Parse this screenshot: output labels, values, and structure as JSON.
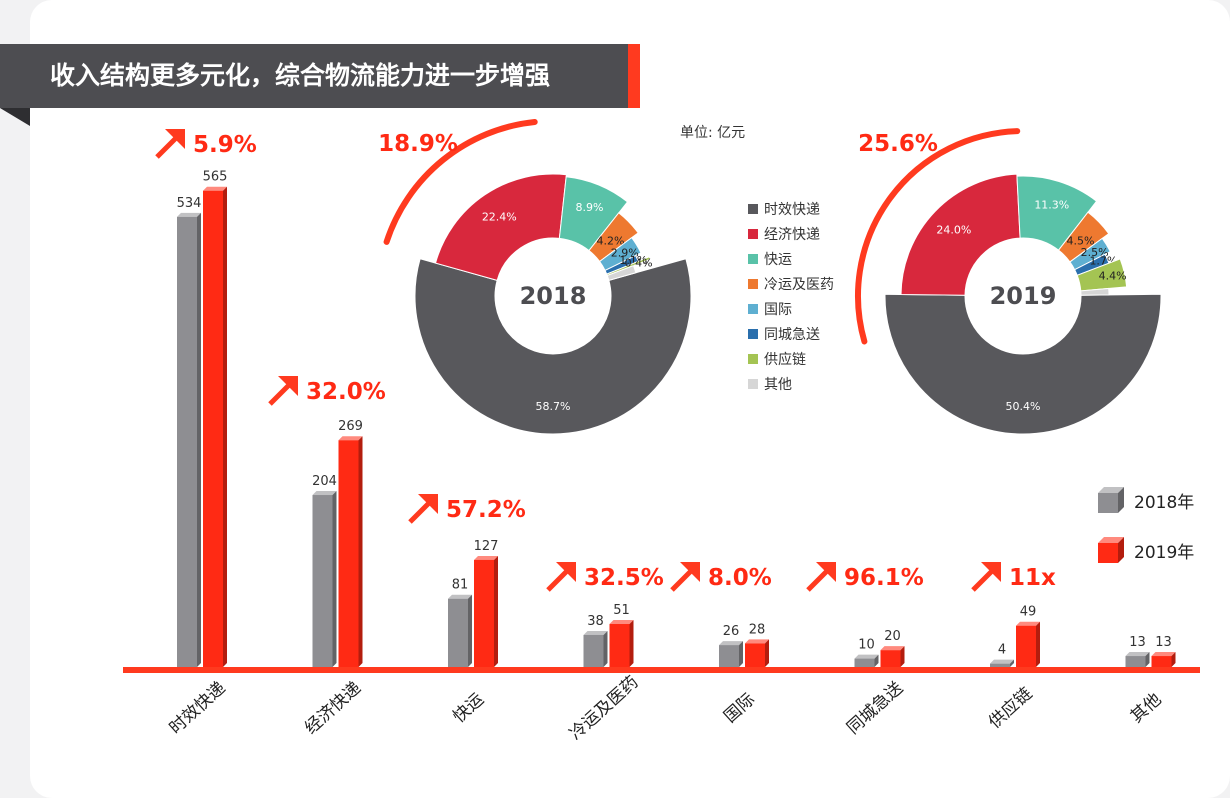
{
  "header": {
    "title": "收入结构更多元化，综合物流能力进一步增强"
  },
  "unit_label": "单位: 亿元",
  "colors": {
    "y2018": "#8e8e92",
    "y2019": "#ff2a14",
    "accent": "#ff3a1f",
    "dark": "#4d4d51"
  },
  "legend": [
    {
      "label": "时效快递",
      "color": "#58585c"
    },
    {
      "label": "经济快递",
      "color": "#d8283d"
    },
    {
      "label": "快运",
      "color": "#59c2a8"
    },
    {
      "label": "冷运及医药",
      "color": "#ee7930"
    },
    {
      "label": "国际",
      "color": "#5eafd1"
    },
    {
      "label": "同城急送",
      "color": "#2a6fad"
    },
    {
      "label": "供应链",
      "color": "#a4c453"
    },
    {
      "label": "其他",
      "color": "#d6d6d6"
    }
  ],
  "year_legend": [
    {
      "label": "2018年",
      "color": "#8e8e92"
    },
    {
      "label": "2019年",
      "color": "#ff2a14"
    }
  ],
  "chart_data": [
    {
      "type": "bar",
      "categories": [
        "时效快递",
        "经济快递",
        "快运",
        "冷运及医药",
        "国际",
        "同城急送",
        "供应链",
        "其他"
      ],
      "series": [
        {
          "name": "2018年",
          "values": [
            534,
            204,
            81,
            38,
            26,
            10,
            4,
            13
          ]
        },
        {
          "name": "2019年",
          "values": [
            565,
            269,
            127,
            51,
            28,
            20,
            49,
            13
          ]
        }
      ],
      "growth_labels": [
        "5.9%",
        "32.0%",
        "57.2%",
        "32.5%",
        "8.0%",
        "96.1%",
        "11x",
        ""
      ],
      "ylim": [
        0,
        600
      ]
    },
    {
      "type": "pie",
      "center_label": "2018",
      "labels": [
        "时效快递",
        "经济快递",
        "快运",
        "冷运及医药",
        "国际",
        "同城急送",
        "供应链",
        "其他"
      ],
      "values": [
        58.7,
        22.4,
        8.9,
        4.2,
        2.9,
        1.1,
        0.4,
        1.4
      ],
      "value_labels": [
        "58.7%",
        "22.4%",
        "8.9%",
        "4.2%",
        "2.9%",
        "1.1%",
        "0.4%",
        ""
      ],
      "highlight_label": "18.9%"
    },
    {
      "type": "pie",
      "center_label": "2019",
      "labels": [
        "时效快递",
        "经济快递",
        "快运",
        "冷运及医药",
        "国际",
        "同城急送",
        "供应链",
        "其他"
      ],
      "values": [
        50.4,
        24.0,
        11.3,
        4.5,
        2.5,
        1.7,
        4.4,
        1.2
      ],
      "value_labels": [
        "50.4%",
        "24.0%",
        "11.3%",
        "4.5%",
        "2.5%",
        "1.7%",
        "4.4%",
        ""
      ],
      "highlight_label": "25.6%"
    }
  ]
}
